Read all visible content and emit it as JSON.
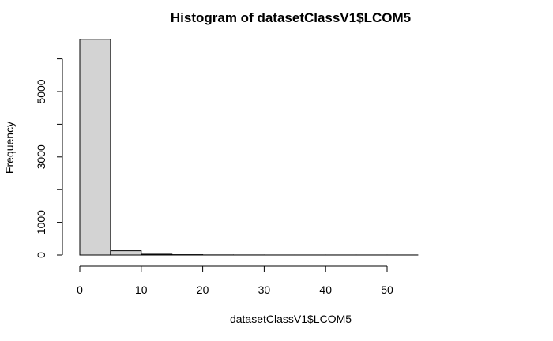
{
  "chart_data": {
    "type": "bar",
    "subtype": "histogram",
    "title": "Histogram of datasetClassV1$LCOM5",
    "xlabel": "datasetClassV1$LCOM5",
    "ylabel": "Frequency",
    "xlim": [
      0,
      55
    ],
    "ylim": [
      0,
      6500
    ],
    "x_ticks": [
      0,
      10,
      20,
      30,
      40,
      50
    ],
    "y_ticks": [
      0,
      1000,
      3000,
      5000
    ],
    "bin_edges": [
      0,
      5,
      10,
      15,
      20,
      25,
      30,
      35,
      40,
      45,
      50,
      55
    ],
    "values": [
      6600,
      130,
      25,
      10,
      3,
      2,
      1,
      1,
      1,
      1,
      1
    ],
    "bar_fill": "#d3d3d3",
    "bar_stroke": "#000000"
  }
}
